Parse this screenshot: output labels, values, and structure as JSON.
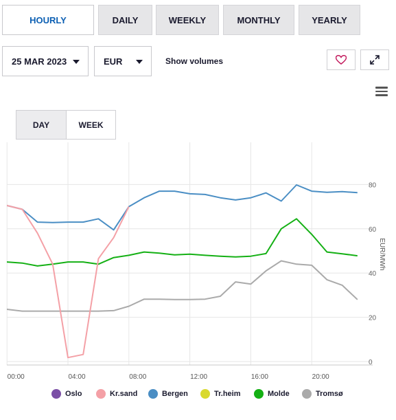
{
  "tabs": [
    {
      "label": "HOURLY",
      "active": true
    },
    {
      "label": "DAILY",
      "active": false
    },
    {
      "label": "WEEKLY",
      "active": false
    },
    {
      "label": "MONTHLY",
      "active": false
    },
    {
      "label": "YEARLY",
      "active": false
    }
  ],
  "controls": {
    "date": "25 MAR 2023",
    "currency": "EUR",
    "show_volumes": "Show volumes",
    "favorite_icon": "heart-icon",
    "expand_icon": "expand-icon",
    "menu_icon": "menu-icon"
  },
  "view_toggle": [
    {
      "label": "DAY",
      "active": true
    },
    {
      "label": "WEEK",
      "active": false
    }
  ],
  "colors": {
    "accent": "#0b5fb3",
    "Oslo": "#7b4fa6",
    "Kr.sand": "#f4a0a6",
    "Bergen": "#4a8ec4",
    "Tr.heim": "#d9d92e",
    "Molde": "#14b014",
    "Tromsø": "#aaaaaa"
  },
  "chart_data": {
    "type": "line",
    "x": [
      "23:00",
      "00:00",
      "01:00",
      "02:00",
      "03:00",
      "04:00",
      "05:00",
      "06:00",
      "07:00",
      "08:00",
      "09:00",
      "10:00",
      "11:00",
      "12:00",
      "13:00",
      "14:00",
      "15:00",
      "16:00",
      "17:00",
      "18:00",
      "19:00",
      "20:00",
      "21:00",
      "22:00",
      "23:00"
    ],
    "xticks": [
      "00:00",
      "04:00",
      "08:00",
      "12:00",
      "16:00",
      "20:00"
    ],
    "ylabel": "EUR/MWh",
    "yticks": [
      0,
      20,
      40,
      60,
      80
    ],
    "ylim": [
      -2,
      100
    ],
    "grid": true,
    "legend_position": "bottom",
    "series": [
      {
        "name": "Oslo",
        "values": [
          null,
          null,
          null,
          null,
          null,
          null,
          null,
          null,
          null,
          null,
          null,
          null,
          null,
          null,
          null,
          null,
          null,
          null,
          null,
          null,
          null,
          null,
          null,
          null,
          null
        ]
      },
      {
        "name": "Kr.sand",
        "values": [
          72.0,
          70.5,
          68.8,
          58.0,
          44.0,
          1.8,
          3.2,
          46.5,
          56.0,
          70.0,
          null,
          null,
          null,
          null,
          null,
          null,
          null,
          null,
          null,
          null,
          null,
          null,
          null,
          null,
          null
        ]
      },
      {
        "name": "Bergen",
        "values": [
          72.0,
          70.5,
          68.8,
          63.0,
          62.8,
          63.0,
          63.0,
          64.5,
          59.5,
          70.0,
          74.0,
          77.0,
          77.0,
          75.8,
          75.5,
          74.0,
          73.0,
          74.0,
          76.2,
          72.5,
          79.8,
          77.0,
          76.5,
          76.8,
          76.3
        ]
      },
      {
        "name": "Tr.heim",
        "values": [
          null,
          null,
          null,
          null,
          null,
          null,
          null,
          null,
          null,
          null,
          null,
          null,
          null,
          null,
          null,
          null,
          null,
          null,
          null,
          null,
          null,
          null,
          null,
          null,
          null
        ]
      },
      {
        "name": "Molde",
        "values": [
          44.2,
          45.0,
          44.5,
          43.2,
          44.0,
          45.0,
          45.0,
          44.0,
          47.0,
          48.0,
          49.5,
          49.0,
          48.2,
          48.5,
          48.0,
          47.6,
          47.3,
          47.6,
          48.8,
          60.0,
          64.5,
          57.5,
          49.5,
          48.7,
          47.8
        ]
      },
      {
        "name": "Tromsø",
        "values": [
          29.5,
          23.6,
          22.8,
          22.8,
          22.8,
          22.8,
          22.8,
          22.8,
          23.0,
          25.0,
          28.2,
          28.2,
          28.0,
          28.0,
          28.2,
          29.5,
          36.0,
          35.0,
          41.0,
          45.5,
          44.0,
          43.5,
          37.0,
          34.5,
          28.0
        ]
      }
    ]
  }
}
